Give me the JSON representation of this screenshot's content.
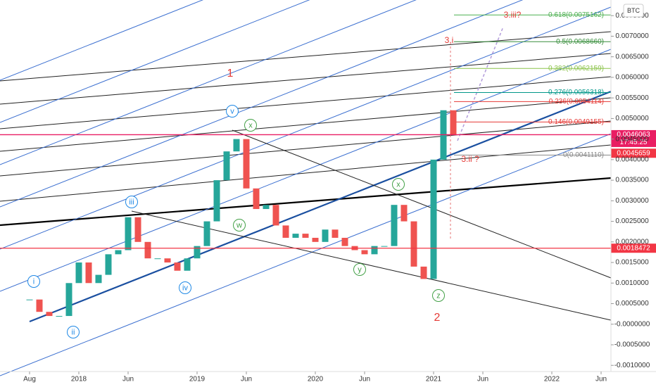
{
  "chart_data": {
    "type": "candlestick",
    "symbol": "BTC",
    "x": [
      "2017-08",
      "2017-09",
      "2017-10",
      "2017-11",
      "2017-12",
      "2018-01",
      "2018-02",
      "2018-03",
      "2018-04",
      "2018-05",
      "2018-06",
      "2018-07",
      "2018-08",
      "2018-09",
      "2018-10",
      "2018-11",
      "2018-12",
      "2019-01",
      "2019-02",
      "2019-03",
      "2019-04",
      "2019-05",
      "2019-06",
      "2019-07",
      "2019-08",
      "2019-09",
      "2019-10",
      "2019-11",
      "2019-12",
      "2020-01",
      "2020-02",
      "2020-03",
      "2020-04",
      "2020-05",
      "2020-06",
      "2020-07",
      "2020-08",
      "2020-09",
      "2020-10",
      "2020-11",
      "2020-12",
      "2021-01",
      "2021-02",
      "2021-03"
    ],
    "values": [
      0.0006,
      0.0003,
      0.0002,
      0.0002,
      0.001,
      0.0015,
      0.001,
      0.0012,
      0.0017,
      0.0018,
      0.0026,
      0.002,
      0.0016,
      0.0016,
      0.0015,
      0.0013,
      0.0016,
      0.0019,
      0.0025,
      0.0035,
      0.0042,
      0.0045,
      0.0033,
      0.0028,
      0.0029,
      0.0024,
      0.0021,
      0.0022,
      0.0021,
      0.002,
      0.0023,
      0.0021,
      0.0019,
      0.0018,
      0.0017,
      0.0019,
      0.0019,
      0.0029,
      0.0025,
      0.0014,
      0.0011,
      0.004,
      0.0052,
      0.0046
    ],
    "up_color": "#26a69a",
    "down_color": "#ef5350",
    "xlim": [
      "2017-05",
      "2022-07"
    ],
    "xticks": [
      {
        "value": "2017-08",
        "label": "Aug"
      },
      {
        "value": "2018-01",
        "label": "2018"
      },
      {
        "value": "2018-06",
        "label": "Jun"
      },
      {
        "value": "2019-01",
        "label": "2019"
      },
      {
        "value": "2019-06",
        "label": "Jun"
      },
      {
        "value": "2020-01",
        "label": "2020"
      },
      {
        "value": "2020-06",
        "label": "Jun"
      },
      {
        "value": "2021-01",
        "label": "2021"
      },
      {
        "value": "2021-06",
        "label": "Jun"
      },
      {
        "value": "2022-01",
        "label": "2022"
      },
      {
        "value": "2022-06",
        "label": "Jun"
      }
    ],
    "ylim": [
      -0.00115,
      0.00788
    ],
    "yticks": [
      {
        "value": -0.001,
        "label": "-0.0010000"
      },
      {
        "value": -0.0005,
        "label": "-0.0005000"
      },
      {
        "value": 0,
        "label": "-0.0000000"
      },
      {
        "value": 0.0005,
        "label": "0.0005000"
      },
      {
        "value": 0.001,
        "label": "0.0010000"
      },
      {
        "value": 0.0015,
        "label": "0.0015000"
      },
      {
        "value": 0.002,
        "label": "0.0020000"
      },
      {
        "value": 0.0025,
        "label": "0.0025000"
      },
      {
        "value": 0.003,
        "label": "0.0030000"
      },
      {
        "value": 0.0035,
        "label": "0.0035000"
      },
      {
        "value": 0.004,
        "label": "0.0040000"
      },
      {
        "value": 0.0045,
        "label": "0.0045000"
      },
      {
        "value": 0.005,
        "label": "0.0050000"
      },
      {
        "value": 0.0055,
        "label": "0.0055000"
      },
      {
        "value": 0.006,
        "label": "0.0060000"
      },
      {
        "value": 0.0065,
        "label": "0.0065000"
      },
      {
        "value": 0.007,
        "label": "0.0070000"
      },
      {
        "value": 0.0075,
        "label": "0.0075000"
      }
    ],
    "fib_levels": [
      {
        "value": 0.0075162,
        "label": "0.618(0.0075162)",
        "color": "#4caf50"
      },
      {
        "value": 0.006866,
        "label": "0.5(0.0068660)",
        "color": "#388e3c"
      },
      {
        "value": 0.0062159,
        "label": "0.382(0.0062159)",
        "color": "#8bc34a"
      },
      {
        "value": 0.0056318,
        "label": "0.276(0.0056318)",
        "color": "#009688"
      },
      {
        "value": 0.0054114,
        "label": "0.236(0.0054114)",
        "color": "#e53935"
      },
      {
        "value": 0.0049155,
        "label": "0.146(0.0049155)",
        "color": "#e53935"
      },
      {
        "value": 0.004111,
        "label": "0(0.0041110)",
        "color": "#888888"
      }
    ],
    "price_lines": [
      {
        "value": 0.0046063,
        "label": "0.0046063",
        "color": "#e91e63",
        "countdown": "17:45:25"
      },
      {
        "value": 0.0045659,
        "label": "0.0045659",
        "color": "#f23645"
      },
      {
        "value": 0.0018472,
        "label": "0.0018472",
        "color": "#f23645"
      }
    ],
    "annotations": [
      "1",
      "2",
      "3.i",
      "3.ii ?",
      "3.iii?",
      "i",
      "ii",
      "iii",
      "iv",
      "v",
      "x",
      "w",
      "x",
      "y",
      "z"
    ]
  }
}
